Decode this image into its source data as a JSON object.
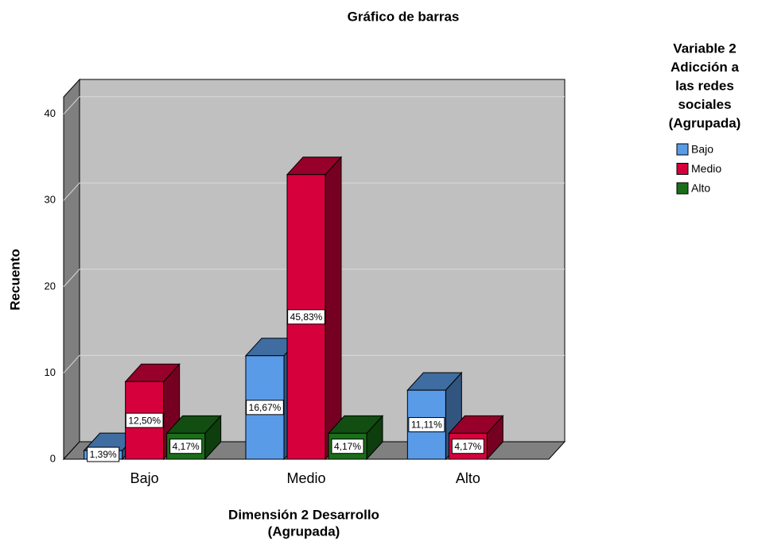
{
  "chart_data": {
    "type": "bar3d",
    "title": "Gráfico de barras",
    "y_label": "Recuento",
    "x_label": [
      "Dimensión 2 Desarrollo",
      "(Agrupada)"
    ],
    "legend_title": [
      "Variable 2",
      "Adicción a",
      "las redes",
      "sociales",
      "(Agrupada)"
    ],
    "categories": [
      "Bajo",
      "Medio",
      "Alto"
    ],
    "series": [
      {
        "name": "Bajo",
        "color": "#5a9be8",
        "values": [
          1,
          12,
          8
        ],
        "value_labels": [
          "1,39%",
          "16,67%",
          "11,11%"
        ]
      },
      {
        "name": "Medio",
        "color": "#d6003c",
        "values": [
          9,
          33,
          3
        ],
        "value_labels": [
          "12,50%",
          "45,83%",
          "4,17%"
        ]
      },
      {
        "name": "Alto",
        "color": "#1a6e1a",
        "values": [
          3,
          3,
          null
        ],
        "value_labels": [
          "4,17%",
          "4,17%",
          null
        ]
      }
    ],
    "ylim": [
      0,
      42
    ],
    "yticks": [
      0,
      10,
      20,
      30,
      40
    ],
    "grid": true,
    "legend": "right"
  }
}
